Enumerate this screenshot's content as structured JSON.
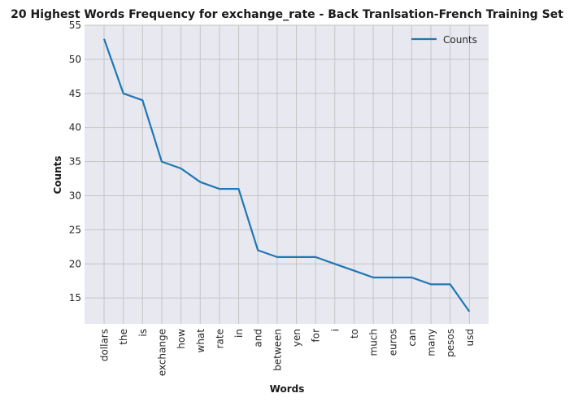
{
  "chart_data": {
    "type": "line",
    "title": "20 Highest Words Frequency for exchange_rate - Back Tranlsation-French Training Set",
    "xlabel": "Words",
    "ylabel": "Counts",
    "categories": [
      "dollars",
      "the",
      "is",
      "exchange",
      "how",
      "what",
      "rate",
      "in",
      "and",
      "between",
      "yen",
      "for",
      "i",
      "to",
      "much",
      "euros",
      "can",
      "many",
      "pesos",
      "usd"
    ],
    "series": [
      {
        "name": "Counts",
        "values": [
          53,
          45,
          44,
          35,
          34,
          32,
          31,
          31,
          22,
          21,
          21,
          21,
          20,
          19,
          18,
          18,
          18,
          17,
          17,
          13
        ]
      }
    ],
    "ylim": [
      11.2,
      55
    ],
    "yticks": [
      15,
      20,
      25,
      30,
      35,
      40,
      45,
      50,
      55
    ],
    "grid": true,
    "legend_position": "top-right",
    "colors": {
      "line": "#1f77b4",
      "plot_background": "#e8e9f0",
      "grid": "#c4c4c4"
    }
  }
}
